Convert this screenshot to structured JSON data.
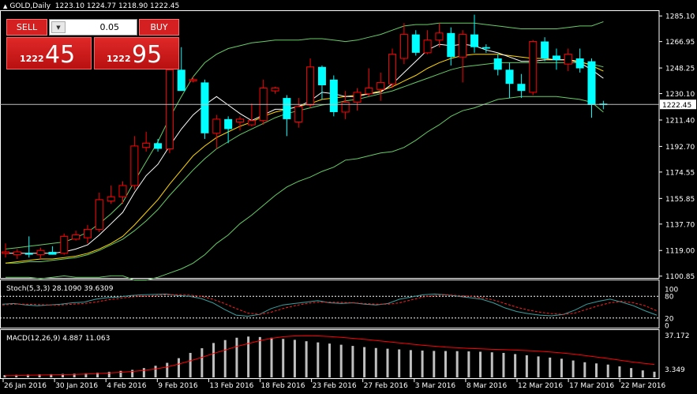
{
  "header": {
    "symbol": "GOLD,Daily",
    "open": "1223.10",
    "high": "1224.77",
    "low": "1218.90",
    "close": "1222.45",
    "collapse_icon": "triangle-up-icon"
  },
  "trade": {
    "sell_label": "SELL",
    "buy_label": "BUY",
    "lot": "0.05",
    "lot_arrow_icon": "chevron-down-icon",
    "sell_small": "1222",
    "sell_big": "45",
    "buy_small": "1222",
    "buy_big": "95"
  },
  "colors": {
    "background": "#000000",
    "bull_candle": "#ff0000",
    "bear_candle": "#00ffff",
    "ma_fast": "#ffffff",
    "ma_slow": "#ffd700",
    "bollinger": "#66cc66",
    "stoch_main": "#3aa0a0",
    "stoch_signal": "#ff2020",
    "macd_hist": "#c0c0c0",
    "macd_signal": "#ff0000",
    "grid": "#ffffff",
    "button_red": "#d42020"
  },
  "chart_data": [
    {
      "type": "candlestick",
      "title": "GOLD,Daily",
      "current_price": "1222.45",
      "y_ticks": [
        "1285.10",
        "1266.95",
        "1248.25",
        "1230.10",
        "1211.40",
        "1192.70",
        "1174.55",
        "1155.85",
        "1137.70",
        "1119.00",
        "1100.85"
      ],
      "ylim": [
        1099,
        1288
      ],
      "x_ticks": [
        "26 Jan 2016",
        "30 Jan 2016",
        "4 Feb 2016",
        "9 Feb 2016",
        "13 Feb 2016",
        "18 Feb 2016",
        "23 Feb 2016",
        "27 Feb 2016",
        "3 Mar 2016",
        "8 Mar 2016",
        "12 Mar 2016",
        "17 Mar 2016",
        "22 Mar 2016"
      ],
      "candles": [
        {
          "o": 1117,
          "h": 1124,
          "l": 1114,
          "c": 1118
        },
        {
          "o": 1116,
          "h": 1120,
          "l": 1113,
          "c": 1118
        },
        {
          "o": 1117,
          "h": 1129,
          "l": 1114,
          "c": 1116
        },
        {
          "o": 1116,
          "h": 1121,
          "l": 1113,
          "c": 1119
        },
        {
          "o": 1118,
          "h": 1122,
          "l": 1116,
          "c": 1116
        },
        {
          "o": 1117,
          "h": 1131,
          "l": 1116,
          "c": 1129
        },
        {
          "o": 1127,
          "h": 1133,
          "l": 1126,
          "c": 1130
        },
        {
          "o": 1128,
          "h": 1137,
          "l": 1124,
          "c": 1134
        },
        {
          "o": 1134,
          "h": 1160,
          "l": 1132,
          "c": 1155
        },
        {
          "o": 1154,
          "h": 1165,
          "l": 1152,
          "c": 1157
        },
        {
          "o": 1157,
          "h": 1168,
          "l": 1152,
          "c": 1165
        },
        {
          "o": 1165,
          "h": 1200,
          "l": 1162,
          "c": 1193
        },
        {
          "o": 1192,
          "h": 1203,
          "l": 1189,
          "c": 1195
        },
        {
          "o": 1195,
          "h": 1198,
          "l": 1189,
          "c": 1191
        },
        {
          "o": 1191,
          "h": 1250,
          "l": 1188,
          "c": 1247
        },
        {
          "o": 1247,
          "h": 1263,
          "l": 1233,
          "c": 1232
        },
        {
          "o": 1240,
          "h": 1242,
          "l": 1238,
          "c": 1240
        },
        {
          "o": 1238,
          "h": 1240,
          "l": 1198,
          "c": 1202
        },
        {
          "o": 1202,
          "h": 1215,
          "l": 1191,
          "c": 1212
        },
        {
          "o": 1212,
          "h": 1214,
          "l": 1195,
          "c": 1205
        },
        {
          "o": 1210,
          "h": 1214,
          "l": 1204,
          "c": 1212
        },
        {
          "o": 1208,
          "h": 1223,
          "l": 1207,
          "c": 1211
        },
        {
          "o": 1211,
          "h": 1240,
          "l": 1208,
          "c": 1234
        },
        {
          "o": 1232,
          "h": 1235,
          "l": 1230,
          "c": 1234
        },
        {
          "o": 1227,
          "h": 1229,
          "l": 1200,
          "c": 1212
        },
        {
          "o": 1210,
          "h": 1227,
          "l": 1206,
          "c": 1221
        },
        {
          "o": 1222,
          "h": 1255,
          "l": 1220,
          "c": 1249
        },
        {
          "o": 1249,
          "h": 1250,
          "l": 1226,
          "c": 1236
        },
        {
          "o": 1240,
          "h": 1243,
          "l": 1214,
          "c": 1217
        },
        {
          "o": 1217,
          "h": 1232,
          "l": 1212,
          "c": 1224
        },
        {
          "o": 1224,
          "h": 1234,
          "l": 1218,
          "c": 1231
        },
        {
          "o": 1230,
          "h": 1248,
          "l": 1228,
          "c": 1234
        },
        {
          "o": 1233,
          "h": 1245,
          "l": 1225,
          "c": 1238
        },
        {
          "o": 1237,
          "h": 1262,
          "l": 1234,
          "c": 1258
        },
        {
          "o": 1255,
          "h": 1280,
          "l": 1251,
          "c": 1272
        },
        {
          "o": 1272,
          "h": 1275,
          "l": 1257,
          "c": 1259
        },
        {
          "o": 1259,
          "h": 1275,
          "l": 1258,
          "c": 1268
        },
        {
          "o": 1268,
          "h": 1280,
          "l": 1263,
          "c": 1273
        },
        {
          "o": 1273,
          "h": 1277,
          "l": 1250,
          "c": 1256
        },
        {
          "o": 1256,
          "h": 1275,
          "l": 1238,
          "c": 1272
        },
        {
          "o": 1272,
          "h": 1286,
          "l": 1259,
          "c": 1263
        },
        {
          "o": 1263,
          "h": 1265,
          "l": 1259,
          "c": 1262
        },
        {
          "o": 1255,
          "h": 1258,
          "l": 1243,
          "c": 1247
        },
        {
          "o": 1247,
          "h": 1252,
          "l": 1227,
          "c": 1237
        },
        {
          "o": 1237,
          "h": 1244,
          "l": 1227,
          "c": 1232
        },
        {
          "o": 1231,
          "h": 1268,
          "l": 1229,
          "c": 1267
        },
        {
          "o": 1267,
          "h": 1270,
          "l": 1253,
          "c": 1255
        },
        {
          "o": 1257,
          "h": 1262,
          "l": 1247,
          "c": 1254
        },
        {
          "o": 1251,
          "h": 1262,
          "l": 1246,
          "c": 1258
        },
        {
          "o": 1255,
          "h": 1262,
          "l": 1245,
          "c": 1248
        },
        {
          "o": 1253,
          "h": 1255,
          "l": 1213,
          "c": 1222
        },
        {
          "o": 1223,
          "h": 1225,
          "l": 1219,
          "c": 1222
        }
      ],
      "ma_fast": [
        1117,
        1117,
        1117,
        1117,
        1117,
        1118,
        1120,
        1123,
        1130,
        1138,
        1146,
        1160,
        1172,
        1180,
        1193,
        1205,
        1215,
        1222,
        1228,
        1222,
        1216,
        1211,
        1215,
        1219,
        1219,
        1221,
        1225,
        1231,
        1230,
        1228,
        1228,
        1230,
        1231,
        1237,
        1245,
        1253,
        1261,
        1265,
        1264,
        1265,
        1264,
        1261,
        1259,
        1256,
        1253,
        1253,
        1254,
        1254,
        1254,
        1252,
        1247,
        1241
      ],
      "ma_slow": [
        1110,
        1111,
        1112,
        1113,
        1113,
        1114,
        1115,
        1117,
        1120,
        1124,
        1129,
        1137,
        1146,
        1155,
        1166,
        1176,
        1186,
        1193,
        1199,
        1203,
        1207,
        1210,
        1214,
        1217,
        1219,
        1221,
        1223,
        1226,
        1227,
        1228,
        1229,
        1230,
        1232,
        1235,
        1239,
        1243,
        1248,
        1252,
        1255,
        1257,
        1258,
        1258,
        1258,
        1257,
        1256,
        1255,
        1255,
        1254,
        1254,
        1253,
        1250,
        1246
      ],
      "bb_upper": [
        1120,
        1121,
        1122,
        1123,
        1124,
        1125,
        1128,
        1132,
        1138,
        1145,
        1153,
        1168,
        1182,
        1196,
        1213,
        1228,
        1242,
        1252,
        1258,
        1262,
        1264,
        1266,
        1267,
        1268,
        1268,
        1268,
        1269,
        1269,
        1268,
        1267,
        1268,
        1270,
        1272,
        1275,
        1278,
        1279,
        1279,
        1280,
        1280,
        1280,
        1280,
        1279,
        1278,
        1277,
        1276,
        1276,
        1276,
        1276,
        1277,
        1278,
        1278,
        1281
      ],
      "bb_middle": [
        1110,
        1110,
        1111,
        1111,
        1112,
        1113,
        1114,
        1116,
        1119,
        1123,
        1127,
        1133,
        1140,
        1148,
        1158,
        1167,
        1176,
        1184,
        1191,
        1196,
        1201,
        1205,
        1209,
        1213,
        1216,
        1218,
        1220,
        1222,
        1223,
        1225,
        1226,
        1228,
        1230,
        1232,
        1235,
        1238,
        1241,
        1244,
        1247,
        1249,
        1250,
        1251,
        1252,
        1252,
        1252,
        1252,
        1252,
        1252,
        1252,
        1252,
        1251,
        1249
      ],
      "bb_lower": [
        1100,
        1100,
        1100,
        1099,
        1100,
        1101,
        1100,
        1100,
        1100,
        1101,
        1101,
        1098,
        1098,
        1100,
        1103,
        1106,
        1110,
        1116,
        1124,
        1130,
        1138,
        1144,
        1151,
        1158,
        1164,
        1168,
        1171,
        1175,
        1178,
        1183,
        1184,
        1186,
        1188,
        1189,
        1192,
        1197,
        1203,
        1208,
        1214,
        1218,
        1220,
        1223,
        1226,
        1227,
        1228,
        1228,
        1228,
        1228,
        1227,
        1226,
        1224,
        1217
      ]
    },
    {
      "type": "line",
      "title": "Stoch(5,3,3)",
      "values_text": "28.1090 39.6309",
      "y_ticks": [
        "100",
        "80",
        "20",
        "0"
      ],
      "ylim": [
        0,
        100
      ],
      "levels": [
        80,
        20
      ],
      "series": [
        {
          "name": "Stoch main",
          "values": [
            58,
            60,
            56,
            54,
            56,
            58,
            62,
            64,
            72,
            76,
            78,
            82,
            84,
            85,
            86,
            82,
            80,
            74,
            62,
            44,
            28,
            25,
            30,
            46,
            56,
            60,
            64,
            68,
            62,
            60,
            62,
            58,
            56,
            60,
            72,
            78,
            84,
            86,
            84,
            80,
            76,
            72,
            62,
            48,
            38,
            32,
            28,
            26,
            30,
            42,
            58,
            66,
            72,
            64,
            54,
            40,
            28
          ]
        },
        {
          "name": "Stoch signal",
          "values": [
            56,
            58,
            58,
            57,
            56,
            56,
            58,
            60,
            64,
            70,
            74,
            78,
            80,
            82,
            84,
            84,
            83,
            80,
            72,
            60,
            46,
            34,
            30,
            36,
            46,
            54,
            60,
            64,
            64,
            63,
            62,
            60,
            58,
            58,
            62,
            70,
            78,
            82,
            84,
            82,
            80,
            76,
            70,
            60,
            50,
            42,
            36,
            32,
            30,
            34,
            44,
            54,
            62,
            66,
            62,
            54,
            40
          ]
        }
      ]
    },
    {
      "type": "bar",
      "title": "MACD(12,26,9)",
      "values_text": "4.887 11.063",
      "y_ticks": [
        "37.172",
        "3.349"
      ],
      "ylim": [
        0,
        37.2
      ],
      "series": [
        {
          "name": "MACD histogram",
          "values": [
            2.0,
            2.2,
            2.4,
            2.6,
            2.8,
            3.0,
            3.2,
            3.5,
            4.0,
            4.8,
            5.6,
            6.5,
            8.0,
            10.0,
            12.5,
            16.5,
            21.0,
            25.0,
            29.5,
            32.0,
            34.0,
            35.0,
            34.6,
            34.0,
            33.0,
            32.2,
            31.0,
            30.0,
            29.0,
            28.0,
            27.0,
            26.0,
            25.2,
            24.6,
            24.0,
            23.4,
            23.0,
            22.7,
            22.6,
            22.5,
            22.3,
            22.0,
            21.5,
            21.0,
            20.0,
            19.0,
            18.0,
            17.0,
            16.0,
            14.5,
            13.0,
            12.0,
            11.0,
            9.5,
            8.0,
            6.0,
            4.887
          ]
        },
        {
          "name": "MACD signal",
          "values": [
            1.4,
            1.6,
            1.8,
            2.0,
            2.2,
            2.4,
            2.6,
            2.9,
            3.3,
            3.8,
            4.4,
            5.1,
            6.0,
            7.3,
            9.0,
            11.4,
            14.2,
            17.2,
            20.5,
            23.5,
            26.5,
            29.0,
            31.5,
            33.5,
            34.8,
            35.5,
            35.7,
            35.5,
            35.0,
            34.3,
            33.5,
            32.6,
            31.6,
            30.6,
            29.6,
            28.6,
            27.6,
            26.8,
            26.0,
            25.4,
            24.9,
            24.5,
            24.1,
            23.8,
            23.4,
            23.0,
            22.5,
            21.8,
            21.0,
            20.0,
            18.8,
            17.5,
            16.2,
            14.8,
            13.4,
            12.2,
            11.063
          ]
        }
      ]
    }
  ]
}
